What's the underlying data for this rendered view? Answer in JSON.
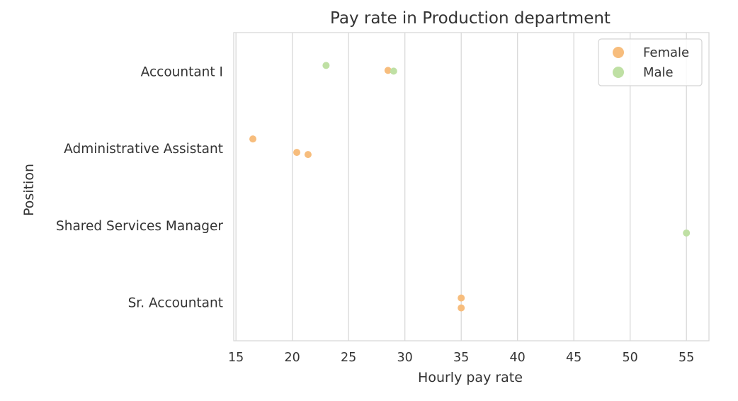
{
  "chart_data": {
    "type": "scatter",
    "title": "Pay rate in Production department",
    "xlabel": "Hourly pay rate",
    "ylabel": "Position",
    "xlim": [
      14.8,
      57.0
    ],
    "xticks": [
      15,
      20,
      25,
      30,
      35,
      40,
      45,
      50,
      55
    ],
    "categories": [
      "Accountant I",
      "Administrative Assistant",
      "Shared Services Manager",
      "Sr. Accountant"
    ],
    "grid": "vertical",
    "legend": "top-right",
    "series": [
      {
        "name": "Female",
        "color": "#f7bd7d",
        "points": [
          {
            "category": "Accountant I",
            "x": 28.5
          },
          {
            "category": "Administrative Assistant",
            "x": 20.4
          },
          {
            "category": "Administrative Assistant",
            "x": 16.5
          },
          {
            "category": "Administrative Assistant",
            "x": 21.4
          },
          {
            "category": "Sr. Accountant",
            "x": 35.0
          },
          {
            "category": "Sr. Accountant",
            "x": 35.0
          }
        ]
      },
      {
        "name": "Male",
        "color": "#bfe0a4",
        "points": [
          {
            "category": "Accountant I",
            "x": 23.0
          },
          {
            "category": "Accountant I",
            "x": 29.0
          },
          {
            "category": "Shared Services Manager",
            "x": 55.0
          }
        ]
      }
    ]
  }
}
